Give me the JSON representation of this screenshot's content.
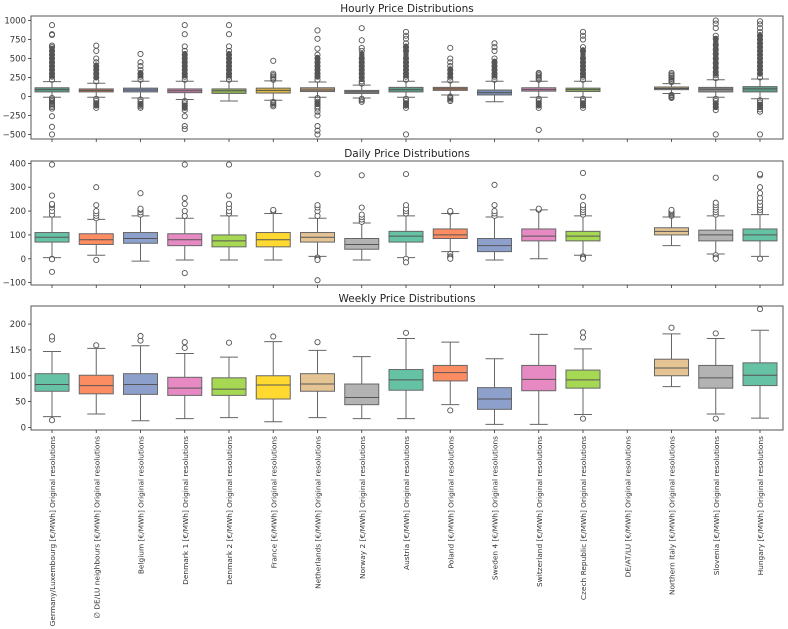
{
  "chart_data": [
    {
      "type": "box",
      "title": "Hourly Price Distributions",
      "xlabel": "",
      "ylabel": "",
      "ylim": [
        -560,
        1060
      ],
      "yticks": [
        -500,
        -250,
        0,
        250,
        500,
        750,
        1000
      ],
      "categories": [
        "Germany/Luxembourg [€/MWh] Original resolutions",
        "∅ DE/LU neighbours [€/MWh] Original resolutions",
        "Belgium [€/MWh] Original resolutions",
        "Denmark 1 [€/MWh] Original resolutions",
        "Denmark 2 [€/MWh] Original resolutions",
        "France [€/MWh] Original resolutions",
        "Netherlands [€/MWh] Original resolutions",
        "Norway 2 [€/MWh] Original resolutions",
        "Austria [€/MWh] Original resolutions",
        "Poland [€/MWh] Original resolutions",
        "Sweden 4 [€/MWh] Original resolutions",
        "Switzerland [€/MWh] Original resolutions",
        "Czech Republic [€/MWh] Original resolutions",
        "DE/AT/LU [€/MWh] Original resolutions",
        "Northern Italy [€/MWh] Original resolutions",
        "Slovenia [€/MWh] Original resolutions",
        "Hungary [€/MWh] Original resolutions"
      ],
      "boxes": [
        {
          "q1": 60,
          "median": 90,
          "q3": 115,
          "lo": -10,
          "hi": 195,
          "out_hi": [
            220,
            260,
            300,
            350,
            400,
            450,
            500,
            550,
            600,
            650,
            670,
            810,
            820,
            940
          ],
          "out_lo": [
            -20,
            -40,
            -60,
            -80,
            -100,
            -120,
            -140,
            -160,
            -260,
            -400,
            -500
          ]
        },
        {
          "q1": 60,
          "median": 80,
          "q3": 100,
          "lo": -10,
          "hi": 175,
          "out_hi": [
            200,
            250,
            300,
            350,
            400,
            450,
            500,
            600,
            670
          ],
          "out_lo": [
            -30,
            -60,
            -90,
            -120,
            -150
          ]
        },
        {
          "q1": 60,
          "median": 85,
          "q3": 110,
          "lo": -20,
          "hi": 200,
          "out_hi": [
            220,
            260,
            300,
            350,
            400,
            450,
            560
          ],
          "out_lo": [
            -40,
            -70,
            -100,
            -130,
            -150
          ]
        },
        {
          "q1": 50,
          "median": 75,
          "q3": 100,
          "lo": -40,
          "hi": 200,
          "out_hi": [
            220,
            260,
            300,
            350,
            400,
            450,
            500,
            550,
            600,
            660,
            820,
            940
          ],
          "out_lo": [
            -60,
            -90,
            -120,
            -150,
            -180,
            -260,
            -390,
            -430
          ]
        },
        {
          "q1": 40,
          "median": 75,
          "q3": 100,
          "lo": -60,
          "hi": 200,
          "out_hi": [
            220,
            260,
            300,
            350,
            400,
            450,
            500,
            550,
            600,
            660,
            820,
            940
          ],
          "out_lo": []
        },
        {
          "q1": 45,
          "median": 80,
          "q3": 110,
          "lo": -50,
          "hi": 205,
          "out_hi": [
            220,
            240,
            260,
            280,
            300,
            470
          ],
          "out_lo": [
            -70,
            -90,
            -110,
            -130
          ]
        },
        {
          "q1": 65,
          "median": 85,
          "q3": 115,
          "lo": -10,
          "hi": 190,
          "out_hi": [
            220,
            260,
            300,
            350,
            400,
            450,
            500,
            550,
            630,
            760,
            870
          ],
          "out_lo": [
            -20,
            -40,
            -70,
            -100,
            -130,
            -160,
            -200,
            -250,
            -390,
            -450,
            -500
          ]
        },
        {
          "q1": 40,
          "median": 60,
          "q3": 80,
          "lo": -20,
          "hi": 150,
          "out_hi": [
            170,
            200,
            250,
            300,
            350,
            400,
            450,
            500,
            600,
            640,
            740,
            900
          ],
          "out_lo": [
            -30,
            -50,
            -70
          ]
        },
        {
          "q1": 60,
          "median": 90,
          "q3": 120,
          "lo": -10,
          "hi": 200,
          "out_hi": [
            220,
            260,
            300,
            350,
            400,
            450,
            500,
            600,
            650,
            700,
            760,
            800,
            850
          ],
          "out_lo": [
            -30,
            -60,
            -90,
            -120,
            -150,
            -500
          ]
        },
        {
          "q1": 80,
          "median": 100,
          "q3": 120,
          "lo": 20,
          "hi": 190,
          "out_hi": [
            210,
            250,
            300,
            350,
            400,
            450,
            500,
            640
          ],
          "out_lo": [
            0,
            -20,
            -40,
            -60
          ]
        },
        {
          "q1": 20,
          "median": 50,
          "q3": 85,
          "lo": -70,
          "hi": 200,
          "out_hi": [
            220,
            260,
            300,
            350,
            400,
            450,
            500,
            600,
            650,
            700
          ],
          "out_lo": []
        },
        {
          "q1": 70,
          "median": 90,
          "q3": 115,
          "lo": -10,
          "hi": 200,
          "out_hi": [
            220,
            240,
            260,
            280,
            300,
            310
          ],
          "out_lo": [
            -30,
            -60,
            -90,
            -120,
            -150,
            -440
          ]
        },
        {
          "q1": 65,
          "median": 90,
          "q3": 110,
          "lo": -10,
          "hi": 200,
          "out_hi": [
            220,
            260,
            300,
            350,
            400,
            450,
            500,
            600,
            650,
            750,
            800,
            850
          ],
          "out_lo": [
            -30,
            -60,
            -90,
            -120,
            -150
          ]
        },
        null,
        {
          "q1": 90,
          "median": 105,
          "q3": 125,
          "lo": 40,
          "hi": 170,
          "out_hi": [
            190,
            210,
            230,
            250,
            270,
            290,
            310
          ],
          "out_lo": [
            20,
            0,
            -10,
            -20
          ]
        },
        {
          "q1": 60,
          "median": 95,
          "q3": 120,
          "lo": -10,
          "hi": 220,
          "out_hi": [
            240,
            280,
            320,
            380,
            440,
            500,
            560,
            620,
            680,
            760,
            800,
            900,
            960,
            1000
          ],
          "out_lo": [
            -30,
            -60,
            -100,
            -140,
            -180,
            -500
          ]
        },
        {
          "q1": 60,
          "median": 100,
          "q3": 130,
          "lo": -30,
          "hi": 230,
          "out_hi": [
            250,
            300,
            350,
            400,
            450,
            500,
            550,
            600,
            650,
            700,
            750,
            800,
            850,
            900,
            950,
            990
          ],
          "out_lo": [
            -50,
            -80,
            -110,
            -140,
            -170,
            -200,
            -500
          ]
        }
      ]
    },
    {
      "type": "box",
      "title": "Daily Price Distributions",
      "ylim": [
        -110,
        410
      ],
      "yticks": [
        -100,
        0,
        100,
        200,
        300,
        400
      ],
      "boxes": [
        {
          "q1": 70,
          "median": 90,
          "q3": 110,
          "lo": 5,
          "hi": 175,
          "out_hi": [
            185,
            200,
            215,
            225,
            230,
            265,
            395
          ],
          "out_lo": [
            0,
            -2,
            -55
          ]
        },
        {
          "q1": 60,
          "median": 80,
          "q3": 105,
          "lo": 15,
          "hi": 165,
          "out_hi": [
            170,
            180,
            190,
            200,
            225,
            300
          ],
          "out_lo": [
            -5
          ]
        },
        {
          "q1": 65,
          "median": 85,
          "q3": 110,
          "lo": -10,
          "hi": 180,
          "out_hi": [
            185,
            195,
            205,
            210,
            275
          ],
          "out_lo": []
        },
        {
          "q1": 55,
          "median": 80,
          "q3": 105,
          "lo": -5,
          "hi": 170,
          "out_hi": [
            180,
            200,
            230,
            255,
            395
          ],
          "out_lo": [
            -60
          ]
        },
        {
          "q1": 50,
          "median": 75,
          "q3": 100,
          "lo": -5,
          "hi": 180,
          "out_hi": [
            190,
            200,
            215,
            230,
            265,
            395
          ],
          "out_lo": []
        },
        {
          "q1": 50,
          "median": 80,
          "q3": 110,
          "lo": -5,
          "hi": 190,
          "out_hi": [
            200,
            205
          ],
          "out_lo": []
        },
        {
          "q1": 70,
          "median": 90,
          "q3": 110,
          "lo": 10,
          "hi": 170,
          "out_hi": [
            180,
            200,
            215,
            225,
            355
          ],
          "out_lo": [
            5,
            0,
            -5,
            -90
          ]
        },
        {
          "q1": 40,
          "median": 60,
          "q3": 85,
          "lo": -5,
          "hi": 150,
          "out_hi": [
            155,
            165,
            175,
            185,
            215,
            350
          ],
          "out_lo": []
        },
        {
          "q1": 70,
          "median": 95,
          "q3": 115,
          "lo": 5,
          "hi": 180,
          "out_hi": [
            190,
            200,
            210,
            225,
            355
          ],
          "out_lo": [
            0,
            -15
          ]
        },
        {
          "q1": 85,
          "median": 100,
          "q3": 125,
          "lo": 30,
          "hi": 190,
          "out_hi": [
            195,
            200
          ],
          "out_lo": [
            20,
            10,
            5,
            0
          ]
        },
        {
          "q1": 30,
          "median": 55,
          "q3": 85,
          "lo": -5,
          "hi": 175,
          "out_hi": [
            180,
            190,
            200,
            225,
            310
          ],
          "out_lo": []
        },
        {
          "q1": 75,
          "median": 95,
          "q3": 125,
          "lo": 0,
          "hi": 205,
          "out_hi": [
            205,
            210
          ],
          "out_lo": []
        },
        {
          "q1": 75,
          "median": 95,
          "q3": 115,
          "lo": 15,
          "hi": 180,
          "out_hi": [
            185,
            195,
            205,
            215,
            225,
            260,
            360
          ],
          "out_lo": [
            10,
            5,
            0
          ]
        },
        null,
        {
          "q1": 100,
          "median": 115,
          "q3": 130,
          "lo": 55,
          "hi": 175,
          "out_hi": [
            180,
            185,
            190,
            195,
            200,
            205
          ],
          "out_lo": []
        },
        {
          "q1": 75,
          "median": 100,
          "q3": 120,
          "lo": 20,
          "hi": 180,
          "out_hi": [
            185,
            195,
            205,
            215,
            225,
            235,
            340
          ],
          "out_lo": [
            15,
            5,
            0
          ]
        },
        {
          "q1": 75,
          "median": 100,
          "q3": 125,
          "lo": 10,
          "hi": 185,
          "out_hi": [
            195,
            205,
            215,
            225,
            240,
            255,
            275,
            300,
            350,
            355
          ],
          "out_lo": [
            0
          ]
        }
      ]
    },
    {
      "type": "box",
      "title": "Weekly Price Distributions",
      "ylim": [
        -5,
        235
      ],
      "yticks": [
        0,
        50,
        100,
        150,
        200
      ],
      "boxes": [
        {
          "q1": 70,
          "median": 83,
          "q3": 104,
          "lo": 21,
          "hi": 147,
          "out_hi": [
            170,
            176
          ],
          "out_lo": [
            14
          ]
        },
        {
          "q1": 65,
          "median": 81,
          "q3": 101,
          "lo": 26,
          "hi": 153,
          "out_hi": [
            159
          ],
          "out_lo": []
        },
        {
          "q1": 64,
          "median": 83,
          "q3": 104,
          "lo": 13,
          "hi": 158,
          "out_hi": [
            168,
            177
          ],
          "out_lo": []
        },
        {
          "q1": 62,
          "median": 76,
          "q3": 97,
          "lo": 17,
          "hi": 143,
          "out_hi": [
            154,
            165
          ],
          "out_lo": []
        },
        {
          "q1": 62,
          "median": 74,
          "q3": 96,
          "lo": 19,
          "hi": 136,
          "out_hi": [
            164
          ],
          "out_lo": []
        },
        {
          "q1": 55,
          "median": 82,
          "q3": 100,
          "lo": 11,
          "hi": 166,
          "out_hi": [
            176
          ],
          "out_lo": []
        },
        {
          "q1": 70,
          "median": 84,
          "q3": 104,
          "lo": 19,
          "hi": 149,
          "out_hi": [
            165
          ],
          "out_lo": []
        },
        {
          "q1": 44,
          "median": 58,
          "q3": 84,
          "lo": 17,
          "hi": 137,
          "out_hi": [],
          "out_lo": []
        },
        {
          "q1": 72,
          "median": 92,
          "q3": 112,
          "lo": 17,
          "hi": 172,
          "out_hi": [
            183
          ],
          "out_lo": []
        },
        {
          "q1": 90,
          "median": 106,
          "q3": 120,
          "lo": 44,
          "hi": 165,
          "out_hi": [],
          "out_lo": [
            33
          ]
        },
        {
          "q1": 35,
          "median": 55,
          "q3": 77,
          "lo": 6,
          "hi": 133,
          "out_hi": [],
          "out_lo": []
        },
        {
          "q1": 71,
          "median": 93,
          "q3": 120,
          "lo": 6,
          "hi": 180,
          "out_hi": [],
          "out_lo": []
        },
        {
          "q1": 76,
          "median": 92,
          "q3": 111,
          "lo": 25,
          "hi": 152,
          "out_hi": [
            174,
            184
          ],
          "out_lo": [
            17
          ]
        },
        null,
        {
          "q1": 100,
          "median": 115,
          "q3": 132,
          "lo": 79,
          "hi": 181,
          "out_hi": [
            193
          ],
          "out_lo": []
        },
        {
          "q1": 76,
          "median": 96,
          "q3": 120,
          "lo": 26,
          "hi": 172,
          "out_hi": [
            182
          ],
          "out_lo": [
            17
          ]
        },
        {
          "q1": 81,
          "median": 101,
          "q3": 125,
          "lo": 18,
          "hi": 188,
          "out_hi": [
            229
          ],
          "out_lo": []
        }
      ]
    }
  ],
  "x_labels": [
    "Germany/Luxembourg [€/MWh] Original resolutions",
    "∅ DE/LU neighbours [€/MWh] Original resolutions",
    "Belgium [€/MWh] Original resolutions",
    "Denmark 1 [€/MWh] Original resolutions",
    "Denmark 2 [€/MWh] Original resolutions",
    "France [€/MWh] Original resolutions",
    "Netherlands [€/MWh] Original resolutions",
    "Norway 2 [€/MWh] Original resolutions",
    "Austria [€/MWh] Original resolutions",
    "Poland [€/MWh] Original resolutions",
    "Sweden 4 [€/MWh] Original resolutions",
    "Switzerland [€/MWh] Original resolutions",
    "Czech Republic [€/MWh] Original resolutions",
    "DE/AT/LU [€/MWh] Original resolutions",
    "Northern Italy [€/MWh] Original resolutions",
    "Slovenia [€/MWh] Original resolutions",
    "Hungary [€/MWh] Original resolutions"
  ],
  "palette_hourly": [
    "#5c9e86",
    "#c07a5a",
    "#7a8fb4",
    "#c97faa",
    "#8eb356",
    "#d9b544",
    "#b39470",
    "#8a8a8a",
    "#5c9e86",
    "#c07a5a",
    "#7a8fb4",
    "#c97faa",
    "#8eb356",
    "#d9b544",
    "#b39470",
    "#8a8a8a",
    "#5c9e86"
  ],
  "palette": [
    "#66c2a5",
    "#fc8d62",
    "#8da0cb",
    "#e78ac3",
    "#a6d854",
    "#ffd92f",
    "#e5c494",
    "#b3b3b3",
    "#66c2a5",
    "#fc8d62",
    "#8da0cb",
    "#e78ac3",
    "#a6d854",
    "#ffd92f",
    "#e5c494",
    "#b3b3b3",
    "#66c2a5"
  ]
}
